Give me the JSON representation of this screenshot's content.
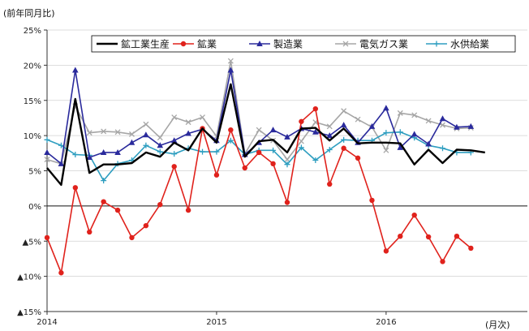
{
  "chart_data": {
    "type": "line",
    "y_unit_label": "(前年同月比)",
    "x_unit_label": "(月次)",
    "ylim": [
      -15,
      25
    ],
    "y_ticks": [
      {
        "value": 25,
        "label": "25%"
      },
      {
        "value": 20,
        "label": "20%"
      },
      {
        "value": 15,
        "label": "15%"
      },
      {
        "value": 10,
        "label": "10%"
      },
      {
        "value": 5,
        "label": "5%"
      },
      {
        "value": 0,
        "label": "0%"
      },
      {
        "value": -5,
        "label": "▲5%"
      },
      {
        "value": -10,
        "label": "▲10%"
      },
      {
        "value": -15,
        "label": "▲15%"
      }
    ],
    "x_count": 35,
    "x_ticks": [
      {
        "index": 0,
        "label": "2014"
      },
      {
        "index": 12,
        "label": "2015"
      },
      {
        "index": 24,
        "label": "2016"
      }
    ],
    "grid": "horizontal",
    "legend_position": "top",
    "series": [
      {
        "name": "鉱工業生産",
        "color": "#000000",
        "marker": "none",
        "values": [
          5.4,
          3.0,
          15.2,
          4.7,
          5.9,
          5.9,
          6.1,
          7.6,
          7.0,
          9.0,
          7.9,
          11.0,
          9.0,
          17.3,
          7.0,
          9.2,
          9.4,
          7.6,
          11.0,
          11.1,
          9.3,
          11.0,
          8.9,
          9.0,
          9.0,
          8.9,
          5.9,
          8.0,
          6.1,
          8.0,
          7.9,
          7.6
        ]
      },
      {
        "name": "鉱業",
        "color": "#e0221c",
        "marker": "circle",
        "values": [
          -4.5,
          -9.5,
          2.6,
          -3.7,
          0.6,
          -0.6,
          -4.5,
          -2.8,
          0.2,
          5.6,
          -0.6,
          11.0,
          4.4,
          10.8,
          5.4,
          7.6,
          6.0,
          0.5,
          12.0,
          13.8,
          3.1,
          8.2,
          6.8,
          0.8,
          -6.4,
          -4.3,
          -1.3,
          -4.4,
          -7.9,
          -4.3,
          -6.0
        ]
      },
      {
        "name": "製造業",
        "color": "#2a2a9c",
        "marker": "triangle",
        "values": [
          7.6,
          6.0,
          19.3,
          6.9,
          7.6,
          7.6,
          9.0,
          10.1,
          8.6,
          9.3,
          10.3,
          10.9,
          9.3,
          19.3,
          7.3,
          9.0,
          10.8,
          9.8,
          11.0,
          10.5,
          10.0,
          11.5,
          9.0,
          11.3,
          13.9,
          8.3,
          10.2,
          8.8,
          12.4,
          11.2,
          11.3
        ]
      },
      {
        "name": "電気ガス業",
        "color": "#a6a6a6",
        "marker": "x",
        "values": [
          6.6,
          6.0,
          14.2,
          10.4,
          10.6,
          10.5,
          10.2,
          11.6,
          9.7,
          12.6,
          11.9,
          12.6,
          9.9,
          20.6,
          7.4,
          10.8,
          9.3,
          6.6,
          9.2,
          11.9,
          11.3,
          13.5,
          12.3,
          11.2,
          7.9,
          13.2,
          12.9,
          12.1,
          11.5,
          11.0,
          11.1
        ]
      },
      {
        "name": "水供給業",
        "color": "#2e9ec0",
        "marker": "plus",
        "values": [
          9.4,
          8.6,
          7.3,
          7.2,
          3.6,
          6.0,
          6.5,
          8.6,
          7.7,
          7.4,
          8.2,
          7.7,
          7.7,
          9.3,
          7.3,
          7.9,
          7.9,
          5.9,
          8.3,
          6.5,
          8.0,
          9.4,
          9.3,
          9.3,
          10.4,
          10.5,
          9.7,
          8.6,
          8.2,
          7.6,
          7.6
        ]
      }
    ]
  }
}
